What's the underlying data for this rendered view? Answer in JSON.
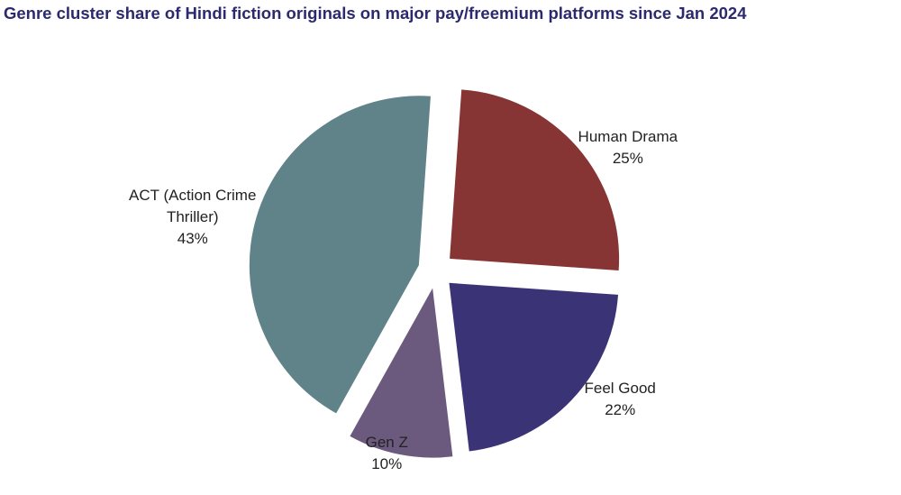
{
  "chart_data": {
    "type": "pie",
    "title": "Genre cluster share of Hindi fiction originals on major pay/freemium platforms since Jan 2024",
    "categories": [
      "Human Drama",
      "Feel Good",
      "Gen Z",
      "ACT (Action Crime Thriller)"
    ],
    "values": [
      25,
      22,
      10,
      43
    ],
    "value_labels": [
      "25%",
      "22%",
      "10%",
      "43%"
    ],
    "colors": [
      "#873434",
      "#3a3476",
      "#6b5a7d",
      "#5f8389"
    ]
  }
}
